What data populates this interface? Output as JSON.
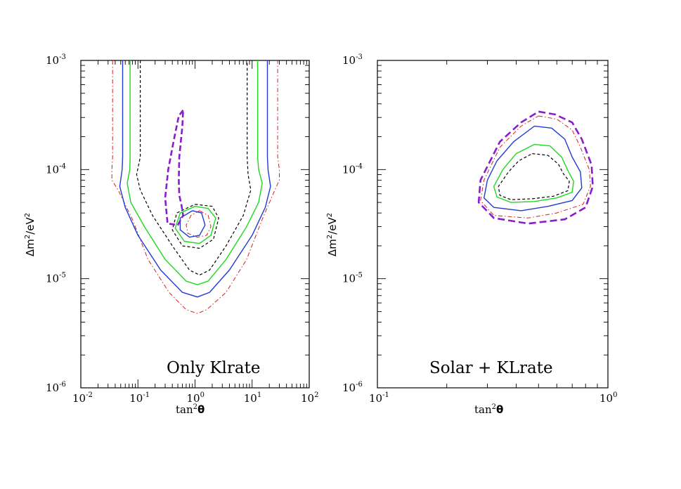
{
  "chart_data": [
    {
      "type": "line",
      "annotation": "Only Klrate",
      "xlabel": {
        "base": "tan",
        "sup": "2",
        "greek": "θ"
      },
      "ylabel": {
        "a": "Δm",
        "a_sup": "2",
        "b": "/eV",
        "b_sup": "2"
      },
      "xscale": "log",
      "yscale": "log",
      "xlim": [
        0.01,
        100
      ],
      "ylim": [
        1e-06,
        0.001
      ],
      "x_ticks": [
        {
          "base": "10",
          "exp": "-2"
        },
        {
          "base": "10",
          "exp": "-1"
        },
        {
          "base": "10",
          "exp": "0"
        },
        {
          "base": "10",
          "exp": "1"
        },
        {
          "base": "10",
          "exp": "2"
        }
      ],
      "y_ticks": [
        {
          "base": "10",
          "exp": "-6"
        },
        {
          "base": "10",
          "exp": "-5"
        },
        {
          "base": "10",
          "exp": "-4"
        },
        {
          "base": "10",
          "exp": "-3"
        }
      ],
      "series": [
        {
          "color": "#d42020",
          "dash": "6,3,1.5,3",
          "width": 1.0,
          "paths": [
            [
              [
                0.036,
                0.001
              ],
              [
                0.036,
                0.00013
              ],
              [
                0.035,
                0.0001
              ],
              [
                0.035,
                8e-05
              ],
              [
                0.045,
                6.5e-05
              ],
              [
                0.08,
                3.5e-05
              ],
              [
                0.15,
                1.5e-05
              ],
              [
                0.35,
                7.5e-06
              ],
              [
                0.7,
                5.2e-06
              ],
              [
                1.1,
                4.8e-06
              ],
              [
                1.6,
                5.2e-06
              ],
              [
                3.5,
                7.5e-06
              ],
              [
                8,
                1.5e-05
              ],
              [
                15,
                3.5e-05
              ],
              [
                25,
                6.5e-05
              ],
              [
                30,
                8e-05
              ],
              [
                30,
                0.0001
              ],
              [
                28,
                0.00013
              ],
              [
                28,
                0.001
              ]
            ],
            [
              [
                1.2,
                4.2e-05
              ],
              [
                1.7,
                3.8e-05
              ],
              [
                1.9,
                3e-05
              ],
              [
                1.6,
                2.5e-05
              ],
              [
                1.1,
                2.4e-05
              ],
              [
                0.75,
                2.6e-05
              ],
              [
                0.7,
                3.1e-05
              ],
              [
                0.85,
                3.8e-05
              ],
              [
                1.2,
                4.2e-05
              ]
            ]
          ]
        },
        {
          "color": "#1f3ad6",
          "dash": "",
          "width": 1.4,
          "paths": [
            [
              [
                0.054,
                0.001
              ],
              [
                0.054,
                0.00013
              ],
              [
                0.053,
                0.0001
              ],
              [
                0.048,
                7e-05
              ],
              [
                0.06,
                4.5e-05
              ],
              [
                0.1,
                2.5e-05
              ],
              [
                0.25,
                1.2e-05
              ],
              [
                0.6,
                7.5e-06
              ],
              [
                1.1,
                6.8e-06
              ],
              [
                1.8,
                7.5e-06
              ],
              [
                4,
                1.2e-05
              ],
              [
                10,
                2.5e-05
              ],
              [
                17,
                4.5e-05
              ],
              [
                21,
                7e-05
              ],
              [
                19,
                0.0001
              ],
              [
                18.5,
                0.00013
              ],
              [
                18.5,
                0.001
              ]
            ],
            [
              [
                0.9,
                4.2e-05
              ],
              [
                1.3,
                4e-05
              ],
              [
                1.5,
                3.1e-05
              ],
              [
                1.2,
                2.5e-05
              ],
              [
                0.8,
                2.4e-05
              ],
              [
                0.55,
                2.8e-05
              ],
              [
                0.55,
                3.6e-05
              ],
              [
                0.9,
                4.2e-05
              ]
            ]
          ]
        },
        {
          "color": "#1ed81e",
          "dash": "",
          "width": 1.4,
          "paths": [
            [
              [
                0.073,
                0.001
              ],
              [
                0.073,
                0.00013
              ],
              [
                0.072,
                0.0001
              ],
              [
                0.065,
                7.5e-05
              ],
              [
                0.075,
                5e-05
              ],
              [
                0.13,
                3e-05
              ],
              [
                0.3,
                1.5e-05
              ],
              [
                0.7,
                9.5e-06
              ],
              [
                1.1,
                8.8e-06
              ],
              [
                1.7,
                9.5e-06
              ],
              [
                3.5,
                1.5e-05
              ],
              [
                8,
                3e-05
              ],
              [
                13,
                5e-05
              ],
              [
                15,
                7.5e-05
              ],
              [
                13,
                0.0001
              ],
              [
                12.5,
                0.00013
              ],
              [
                12.5,
                0.001
              ]
            ],
            [
              [
                1,
                4.6e-05
              ],
              [
                1.7,
                4.4e-05
              ],
              [
                2.3,
                3.6e-05
              ],
              [
                1.9,
                2.5e-05
              ],
              [
                1.2,
                2.1e-05
              ],
              [
                0.65,
                2.2e-05
              ],
              [
                0.45,
                2.9e-05
              ],
              [
                0.55,
                4e-05
              ],
              [
                1,
                4.6e-05
              ]
            ]
          ]
        },
        {
          "color": "#000000",
          "dash": "4,3",
          "width": 1.2,
          "paths": [
            [
              [
                0.11,
                0.001
              ],
              [
                0.11,
                0.00013
              ],
              [
                0.095,
                9e-05
              ],
              [
                0.11,
                6.5e-05
              ],
              [
                0.18,
                3.8e-05
              ],
              [
                0.4,
                2e-05
              ],
              [
                0.8,
                1.2e-05
              ],
              [
                1.2,
                1.08e-05
              ],
              [
                1.8,
                1.2e-05
              ],
              [
                3.5,
                2e-05
              ],
              [
                7,
                3.8e-05
              ],
              [
                9.5,
                6.5e-05
              ],
              [
                8.5,
                9e-05
              ],
              [
                8.2,
                0.00013
              ],
              [
                8.2,
                0.001
              ]
            ],
            [
              [
                1,
                4.8e-05
              ],
              [
                2,
                4.6e-05
              ],
              [
                2.6,
                3.6e-05
              ],
              [
                2.1,
                2.3e-05
              ],
              [
                1.2,
                1.9e-05
              ],
              [
                0.6,
                2e-05
              ],
              [
                0.4,
                2.8e-05
              ],
              [
                0.48,
                4e-05
              ],
              [
                1,
                4.8e-05
              ]
            ]
          ]
        },
        {
          "color": "#8a1ccf",
          "dash": "8,4",
          "width": 2.6,
          "paths": [
            [
              [
                0.62,
                0.00035
              ],
              [
                0.52,
                0.00031
              ],
              [
                0.42,
                0.00018
              ],
              [
                0.34,
                0.0001
              ],
              [
                0.3,
                5.5e-05
              ],
              [
                0.33,
                3.2e-05
              ],
              [
                0.5,
                3.1e-05
              ],
              [
                0.62,
                3.8e-05
              ],
              [
                0.58,
                4.7e-05
              ],
              [
                0.53,
                5.8e-05
              ],
              [
                0.52,
                8e-05
              ],
              [
                0.53,
                0.00013
              ],
              [
                0.6,
                0.00025
              ],
              [
                0.62,
                0.00035
              ]
            ]
          ]
        }
      ]
    },
    {
      "type": "line",
      "annotation": "Solar + KLrate",
      "xlabel": {
        "base": "tan",
        "sup": "2",
        "greek": "θ"
      },
      "ylabel": {
        "a": "Δm",
        "a_sup": "2",
        "b": "/eV",
        "b_sup": "2"
      },
      "xscale": "log",
      "yscale": "log",
      "xlim": [
        0.1,
        1
      ],
      "ylim": [
        1e-06,
        0.001
      ],
      "x_ticks": [
        {
          "base": "10",
          "exp": "-1"
        },
        {
          "base": "10",
          "exp": "0"
        }
      ],
      "y_ticks": [
        {
          "base": "10",
          "exp": "-6"
        },
        {
          "base": "10",
          "exp": "-5"
        },
        {
          "base": "10",
          "exp": "-4"
        },
        {
          "base": "10",
          "exp": "-3"
        }
      ],
      "series": [
        {
          "color": "#8a1ccf",
          "dash": "10,5",
          "width": 2.6,
          "paths": [
            [
              [
                0.5,
                0.00034
              ],
              [
                0.59,
                0.00032
              ],
              [
                0.7,
                0.00027
              ],
              [
                0.77,
                0.00019
              ],
              [
                0.85,
                0.00011
              ],
              [
                0.86,
                7e-05
              ],
              [
                0.8,
                4.5e-05
              ],
              [
                0.65,
                3.5e-05
              ],
              [
                0.45,
                3.2e-05
              ],
              [
                0.32,
                3.6e-05
              ],
              [
                0.275,
                5e-05
              ],
              [
                0.28,
                8e-05
              ],
              [
                0.34,
                0.00018
              ],
              [
                0.42,
                0.00027
              ],
              [
                0.5,
                0.00034
              ]
            ]
          ]
        },
        {
          "color": "#d42020",
          "dash": "6,3,1.5,3",
          "width": 1.0,
          "paths": [
            [
              [
                0.5,
                0.00031
              ],
              [
                0.6,
                0.00029
              ],
              [
                0.7,
                0.00023
              ],
              [
                0.76,
                0.00016
              ],
              [
                0.83,
                0.0001
              ],
              [
                0.84,
                7e-05
              ],
              [
                0.78,
                4.8e-05
              ],
              [
                0.6,
                4e-05
              ],
              [
                0.45,
                3.6e-05
              ],
              [
                0.32,
                3.8e-05
              ],
              [
                0.28,
                5.2e-05
              ],
              [
                0.29,
                8e-05
              ],
              [
                0.34,
                0.00016
              ],
              [
                0.42,
                0.00025
              ],
              [
                0.5,
                0.00031
              ]
            ]
          ]
        },
        {
          "color": "#1f3ad6",
          "dash": "",
          "width": 1.4,
          "paths": [
            [
              [
                0.48,
                0.00025
              ],
              [
                0.57,
                0.00024
              ],
              [
                0.65,
                0.00019
              ],
              [
                0.7,
                0.00013
              ],
              [
                0.76,
                9.5e-05
              ],
              [
                0.77,
                6.8e-05
              ],
              [
                0.7,
                5.2e-05
              ],
              [
                0.55,
                4.6e-05
              ],
              [
                0.42,
                4.2e-05
              ],
              [
                0.32,
                4.5e-05
              ],
              [
                0.29,
                5.5e-05
              ],
              [
                0.3,
                8e-05
              ],
              [
                0.33,
                0.00012
              ],
              [
                0.39,
                0.00018
              ],
              [
                0.48,
                0.00025
              ]
            ]
          ]
        },
        {
          "color": "#1ed81e",
          "dash": "",
          "width": 1.4,
          "paths": [
            [
              [
                0.48,
                0.00017
              ],
              [
                0.56,
                0.000165
              ],
              [
                0.63,
                0.00013
              ],
              [
                0.67,
                9.8e-05
              ],
              [
                0.71,
                7.8e-05
              ],
              [
                0.7,
                6.2e-05
              ],
              [
                0.6,
                5.5e-05
              ],
              [
                0.48,
                5.1e-05
              ],
              [
                0.38,
                5e-05
              ],
              [
                0.33,
                5.6e-05
              ],
              [
                0.32,
                7e-05
              ],
              [
                0.35,
                0.0001
              ],
              [
                0.4,
                0.00014
              ],
              [
                0.48,
                0.00017
              ]
            ]
          ]
        },
        {
          "color": "#000000",
          "dash": "4,3",
          "width": 1.2,
          "paths": [
            [
              [
                0.47,
                0.00014
              ],
              [
                0.55,
                0.000135
              ],
              [
                0.61,
                0.000112
              ],
              [
                0.64,
                9.2e-05
              ],
              [
                0.68,
                7.8e-05
              ],
              [
                0.67,
                6.4e-05
              ],
              [
                0.58,
                5.7e-05
              ],
              [
                0.47,
                5.4e-05
              ],
              [
                0.38,
                5.3e-05
              ],
              [
                0.34,
                5.8e-05
              ],
              [
                0.335,
                7e-05
              ],
              [
                0.37,
                9.5e-05
              ],
              [
                0.41,
                0.00012
              ],
              [
                0.47,
                0.00014
              ]
            ]
          ]
        }
      ]
    }
  ]
}
